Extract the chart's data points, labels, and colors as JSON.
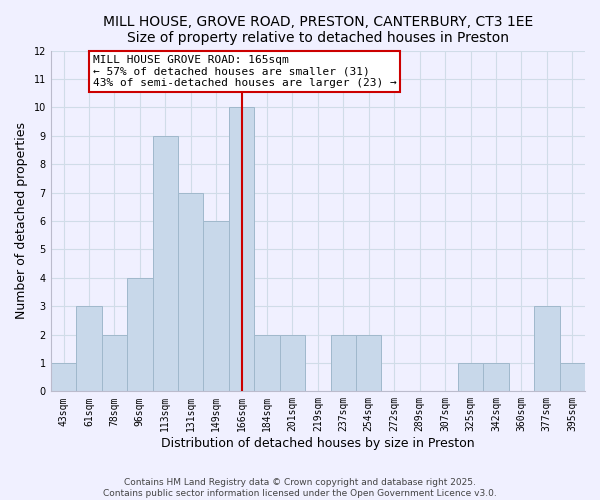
{
  "title": "MILL HOUSE, GROVE ROAD, PRESTON, CANTERBURY, CT3 1EE",
  "subtitle": "Size of property relative to detached houses in Preston",
  "xlabel": "Distribution of detached houses by size in Preston",
  "ylabel": "Number of detached properties",
  "categories": [
    "43sqm",
    "61sqm",
    "78sqm",
    "96sqm",
    "113sqm",
    "131sqm",
    "149sqm",
    "166sqm",
    "184sqm",
    "201sqm",
    "219sqm",
    "237sqm",
    "254sqm",
    "272sqm",
    "289sqm",
    "307sqm",
    "325sqm",
    "342sqm",
    "360sqm",
    "377sqm",
    "395sqm"
  ],
  "values": [
    1,
    3,
    2,
    4,
    9,
    7,
    6,
    10,
    2,
    2,
    0,
    2,
    2,
    0,
    0,
    0,
    1,
    1,
    0,
    3,
    1
  ],
  "bar_color": "#c8d8ea",
  "bar_edge_color": "#a0b8cc",
  "highlight_index": 7,
  "highlight_line_color": "#cc0000",
  "annotation_text": "MILL HOUSE GROVE ROAD: 165sqm\n← 57% of detached houses are smaller (31)\n43% of semi-detached houses are larger (23) →",
  "annotation_box_color": "#ffffff",
  "annotation_box_edge_color": "#cc0000",
  "ylim": [
    0,
    12
  ],
  "yticks": [
    0,
    1,
    2,
    3,
    4,
    5,
    6,
    7,
    8,
    9,
    10,
    11,
    12
  ],
  "footer_line1": "Contains HM Land Registry data © Crown copyright and database right 2025.",
  "footer_line2": "Contains public sector information licensed under the Open Government Licence v3.0.",
  "background_color": "#f0f0ff",
  "grid_color": "#d0dce8",
  "title_fontsize": 10,
  "axis_label_fontsize": 9,
  "tick_fontsize": 7,
  "footer_fontsize": 6.5,
  "annotation_fontsize": 8
}
